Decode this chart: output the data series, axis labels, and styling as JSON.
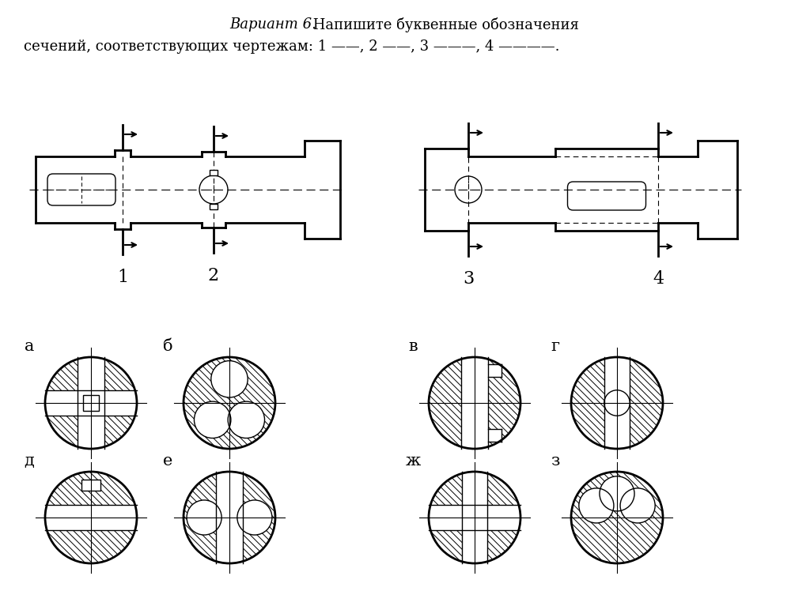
{
  "title_italic": "Вариант 6.",
  "title_normal": " Напишите буквенные обозначения",
  "title_line2": "сечений, соответствующих чертежам: 1 ——, 2 ——, 3 ——, 4 ——.",
  "bg_color": "#ffffff",
  "fg_color": "#000000"
}
